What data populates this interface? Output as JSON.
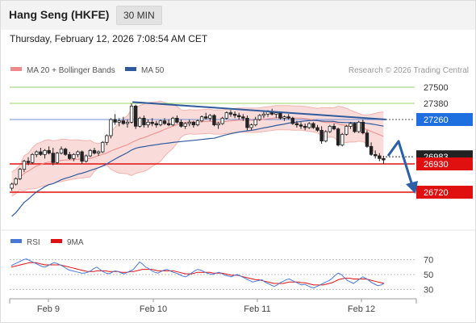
{
  "header": {
    "title": "Hang Seng (HKFE)",
    "timeframe": "30 MIN",
    "datetime": "Thursday, February 12, 2026 7:08:54 AM CET"
  },
  "legend": {
    "items": [
      {
        "label": "MA 20 + Bollinger Bands",
        "color": "#f08a8a"
      },
      {
        "label": "MA 50",
        "color": "#2f5b9e"
      }
    ],
    "copyright": "Research © 2026 Trading Central"
  },
  "chart_data": {
    "type": "candlestick",
    "price_levels": [
      {
        "label": "27500",
        "value": 27500,
        "color": "#9ccc65",
        "style": "line"
      },
      {
        "label": "27380",
        "value": 27380,
        "color": "#9ccc65",
        "style": "line"
      },
      {
        "label": "27260",
        "value": 27260,
        "color": "#1e6fe0",
        "style": "badge"
      },
      {
        "label": "26983",
        "value": 26983,
        "color": "#222222",
        "style": "badge"
      },
      {
        "label": "26930",
        "value": 26930,
        "color": "#e01010",
        "style": "badge"
      },
      {
        "label": "26720",
        "value": 26720,
        "color": "#e01010",
        "style": "badge"
      }
    ],
    "x_tick_labels": [
      "Feb 9",
      "Feb 10",
      "Feb 11",
      "Feb 12"
    ],
    "ohlc": [
      [
        26750,
        26790,
        26730,
        26780
      ],
      [
        26780,
        26830,
        26770,
        26820
      ],
      [
        26820,
        26900,
        26810,
        26890
      ],
      [
        26890,
        26960,
        26870,
        26950
      ],
      [
        26950,
        26980,
        26920,
        26940
      ],
      [
        26940,
        27010,
        26930,
        27000
      ],
      [
        27000,
        27030,
        26980,
        27020
      ],
      [
        27020,
        27050,
        26990,
        27000
      ],
      [
        27000,
        27040,
        26970,
        27030
      ],
      [
        27030,
        27060,
        27000,
        27010
      ],
      [
        27010,
        27050,
        26920,
        26940
      ],
      [
        26940,
        27020,
        26930,
        27010
      ],
      [
        27010,
        27060,
        27000,
        27040
      ],
      [
        27040,
        27050,
        26990,
        27000
      ],
      [
        27000,
        27020,
        26960,
        26970
      ],
      [
        26970,
        27010,
        26950,
        27000
      ],
      [
        27000,
        27030,
        26980,
        27020
      ],
      [
        27020,
        27030,
        26930,
        26950
      ],
      [
        26950,
        27000,
        26940,
        26990
      ],
      [
        26990,
        27040,
        26980,
        27030
      ],
      [
        27030,
        27050,
        27000,
        27010
      ],
      [
        27010,
        27030,
        26990,
        27020
      ],
      [
        27020,
        27100,
        27010,
        27090
      ],
      [
        27090,
        27150,
        27070,
        27140
      ],
      [
        27140,
        27270,
        27120,
        27260
      ],
      [
        27260,
        27300,
        27220,
        27240
      ],
      [
        27240,
        27270,
        27210,
        27250
      ],
      [
        27250,
        27280,
        27220,
        27230
      ],
      [
        27230,
        27260,
        27200,
        27240
      ],
      [
        27240,
        27380,
        27230,
        27360
      ],
      [
        27360,
        27370,
        27190,
        27210
      ],
      [
        27210,
        27280,
        27200,
        27270
      ],
      [
        27270,
        27290,
        27200,
        27220
      ],
      [
        27220,
        27260,
        27200,
        27240
      ],
      [
        27240,
        27270,
        27210,
        27230
      ],
      [
        27230,
        27250,
        27200,
        27220
      ],
      [
        27220,
        27260,
        27210,
        27250
      ],
      [
        27250,
        27270,
        27220,
        27230
      ],
      [
        27230,
        27260,
        27210,
        27220
      ],
      [
        27220,
        27280,
        27210,
        27270
      ],
      [
        27270,
        27290,
        27230,
        27240
      ],
      [
        27240,
        27260,
        27200,
        27210
      ],
      [
        27210,
        27240,
        27190,
        27230
      ],
      [
        27230,
        27260,
        27210,
        27240
      ],
      [
        27240,
        27250,
        27200,
        27220
      ],
      [
        27220,
        27260,
        27210,
        27250
      ],
      [
        27250,
        27290,
        27240,
        27280
      ],
      [
        27280,
        27310,
        27260,
        27270
      ],
      [
        27270,
        27300,
        27250,
        27290
      ],
      [
        27290,
        27300,
        27210,
        27220
      ],
      [
        27220,
        27240,
        27190,
        27230
      ],
      [
        27230,
        27280,
        27220,
        27270
      ],
      [
        27270,
        27320,
        27260,
        27310
      ],
      [
        27310,
        27330,
        27280,
        27300
      ],
      [
        27300,
        27320,
        27270,
        27290
      ],
      [
        27290,
        27310,
        27260,
        27280
      ],
      [
        27280,
        27300,
        27250,
        27270
      ],
      [
        27270,
        27290,
        27180,
        27200
      ],
      [
        27200,
        27230,
        27180,
        27220
      ],
      [
        27220,
        27280,
        27210,
        27260
      ],
      [
        27260,
        27300,
        27250,
        27290
      ],
      [
        27290,
        27320,
        27270,
        27300
      ],
      [
        27300,
        27330,
        27280,
        27320
      ],
      [
        27320,
        27340,
        27290,
        27300
      ],
      [
        27300,
        27320,
        27270,
        27310
      ],
      [
        27310,
        27320,
        27260,
        27270
      ],
      [
        27270,
        27290,
        27250,
        27280
      ],
      [
        27280,
        27300,
        27260,
        27270
      ],
      [
        27270,
        27280,
        27220,
        27230
      ],
      [
        27230,
        27250,
        27200,
        27220
      ],
      [
        27220,
        27240,
        27190,
        27210
      ],
      [
        27210,
        27230,
        27180,
        27200
      ],
      [
        27200,
        27240,
        27190,
        27230
      ],
      [
        27230,
        27240,
        27190,
        27200
      ],
      [
        27200,
        27220,
        27170,
        27180
      ],
      [
        27180,
        27210,
        27080,
        27100
      ],
      [
        27100,
        27180,
        27090,
        27170
      ],
      [
        27170,
        27220,
        27160,
        27210
      ],
      [
        27210,
        27230,
        27180,
        27190
      ],
      [
        27190,
        27200,
        27060,
        27070
      ],
      [
        27070,
        27160,
        27060,
        27150
      ],
      [
        27150,
        27220,
        27140,
        27210
      ],
      [
        27210,
        27240,
        27190,
        27230
      ],
      [
        27230,
        27240,
        27160,
        27170
      ],
      [
        27170,
        27250,
        27160,
        27240
      ],
      [
        27240,
        27260,
        27150,
        27160
      ],
      [
        27160,
        27180,
        27050,
        27060
      ],
      [
        27060,
        27090,
        26990,
        27000
      ],
      [
        27000,
        27030,
        26970,
        26990
      ],
      [
        26990,
        27010,
        26950,
        26970
      ],
      [
        26970,
        26990,
        26930,
        26960
      ]
    ]
  },
  "rsi_panel": {
    "legend": [
      {
        "label": "RSI",
        "color": "#4a78d6"
      },
      {
        "label": "9MA",
        "color": "#e01010"
      }
    ],
    "levels": [
      "70",
      "50",
      "30"
    ],
    "rsi": [
      62,
      64,
      66,
      68,
      70,
      71,
      69,
      67,
      65,
      63,
      61,
      60,
      62,
      64,
      66,
      65,
      63,
      61,
      58,
      56,
      55,
      54,
      53,
      52,
      52,
      53,
      55,
      58,
      60,
      57,
      54,
      52,
      51,
      53,
      55,
      54,
      52,
      51,
      53,
      55,
      57,
      62,
      67,
      64,
      60,
      58,
      55,
      53,
      52,
      54,
      56,
      57,
      55,
      53,
      52,
      50,
      48,
      47,
      49,
      52,
      55,
      57,
      56,
      54,
      52,
      51,
      50,
      52,
      53,
      51,
      49,
      48,
      47,
      49,
      50,
      48,
      46,
      44,
      42,
      40,
      41,
      42,
      43,
      40,
      38,
      36,
      34,
      36,
      39,
      41,
      43,
      44,
      42,
      40,
      38,
      36,
      37,
      35,
      33,
      32,
      34,
      36,
      38,
      40,
      42,
      45,
      49,
      52,
      50,
      46,
      42,
      40,
      38,
      41,
      44,
      47,
      45,
      42,
      39,
      37,
      35,
      36,
      38
    ],
    "ma": [
      60,
      61,
      62,
      63,
      64,
      65,
      66,
      66,
      66,
      65,
      64,
      63,
      63,
      63,
      63,
      63,
      63,
      62,
      61,
      60,
      59,
      58,
      57,
      56,
      55,
      54,
      54,
      54,
      55,
      55,
      55,
      55,
      54,
      54,
      54,
      54,
      53,
      53,
      53,
      54,
      54,
      55,
      56,
      57,
      57,
      57,
      57,
      56,
      55,
      55,
      55,
      55,
      55,
      55,
      54,
      53,
      52,
      51,
      51,
      51,
      52,
      53,
      53,
      53,
      53,
      53,
      52,
      52,
      52,
      52,
      51,
      50,
      49,
      49,
      49,
      48,
      47,
      46,
      45,
      44,
      43,
      43,
      42,
      41,
      40,
      39,
      38,
      38,
      38,
      38,
      39,
      40,
      40,
      40,
      40,
      39,
      39,
      38,
      37,
      36,
      36,
      36,
      36,
      37,
      38,
      39,
      41,
      43,
      44,
      45,
      45,
      45,
      44,
      44,
      44,
      44,
      44,
      43,
      42,
      41,
      40,
      39,
      38
    ]
  }
}
